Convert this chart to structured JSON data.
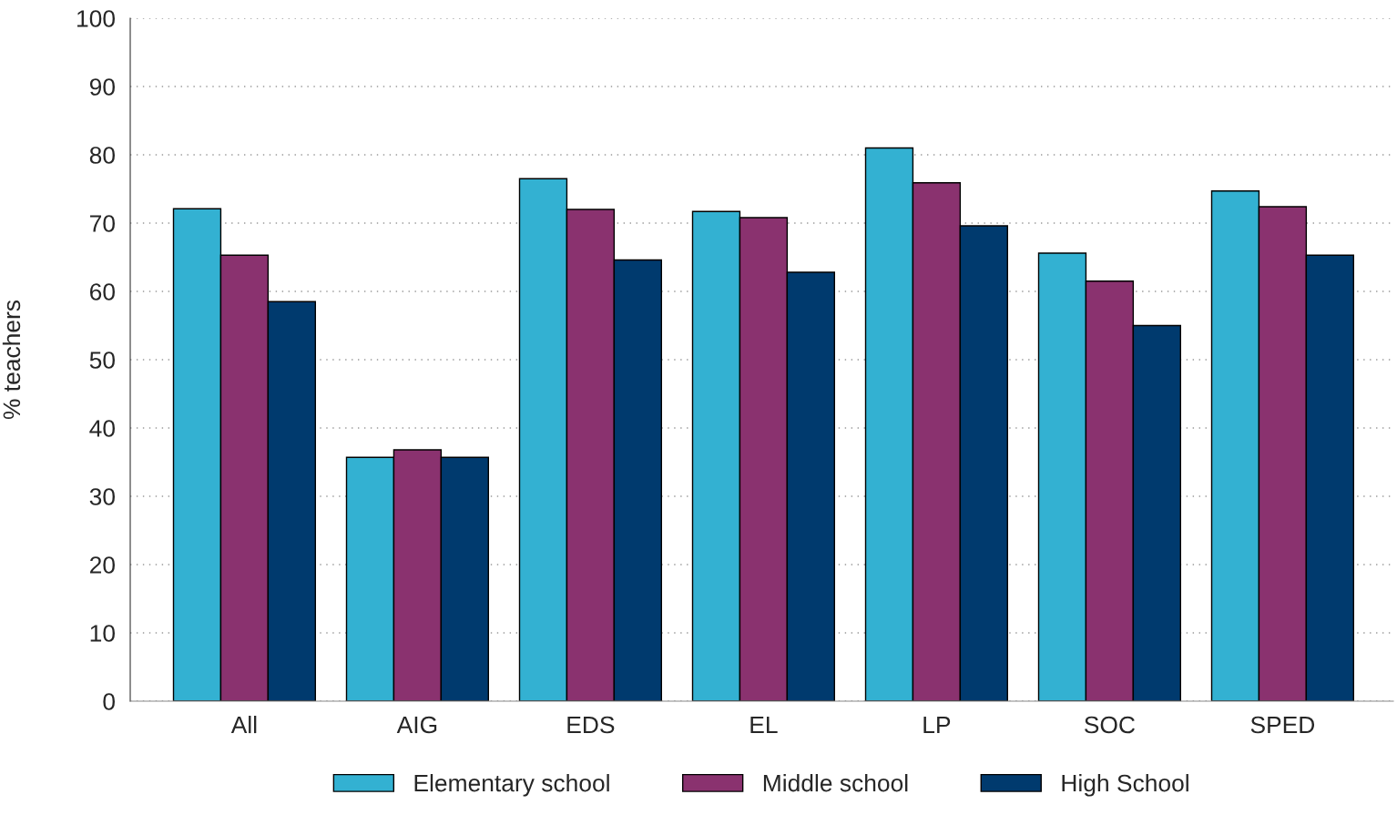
{
  "chart_data": {
    "type": "bar",
    "ylabel": "% teachers",
    "categories": [
      "All",
      "AIG",
      "EDS",
      "EL",
      "LP",
      "SOC",
      "SPED"
    ],
    "series": [
      {
        "name": "Elementary school",
        "color": "#33b1d2",
        "values": [
          72.1,
          35.7,
          76.5,
          71.7,
          81.0,
          65.6,
          74.7
        ]
      },
      {
        "name": "Middle school",
        "color": "#8a326f",
        "values": [
          65.3,
          36.8,
          72.0,
          70.8,
          75.9,
          61.5,
          72.4
        ]
      },
      {
        "name": "High School",
        "color": "#003a6e",
        "values": [
          58.5,
          35.7,
          64.6,
          62.8,
          69.6,
          55.0,
          65.3
        ]
      }
    ],
    "ylim": [
      0,
      100
    ],
    "yticks": [
      0,
      10,
      20,
      30,
      40,
      50,
      60,
      70,
      80,
      90,
      100
    ],
    "grid": "y",
    "legend": "bottom"
  }
}
